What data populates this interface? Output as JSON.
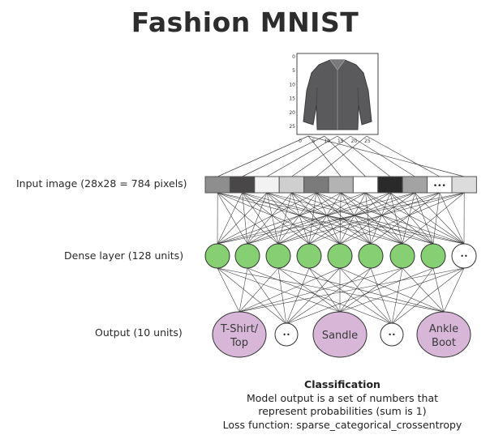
{
  "title": "Fashion MNIST",
  "image_axes": {
    "y_ticks": [
      "0",
      "5",
      "10",
      "15",
      "20",
      "25"
    ],
    "x_ticks": [
      "0",
      "5",
      "10",
      "15",
      "20",
      "25"
    ]
  },
  "rows": {
    "input_label": "Input image (28x28 = 784 pixels)",
    "dense_label": "Dense layer (128 units)",
    "output_label": "Output (10 units)"
  },
  "input_cells": {
    "colors": [
      "#8e8e8e",
      "#4a4749",
      "#f2f2f2",
      "#cfcfcf",
      "#7b7b7b",
      "#b3b3b3",
      "#ffffff",
      "#2a2a2a",
      "#a3a3a3",
      "#ffffff",
      "#dcdcdc"
    ],
    "ellipsis": "•••"
  },
  "dense": {
    "node_color": "#86cf73",
    "ellipsis": "••"
  },
  "outputs": [
    {
      "label_line1": "T-Shirt/",
      "label_line2": "Top"
    },
    {
      "label_line1": "Sandle",
      "label_line2": ""
    },
    {
      "label_line1": "Ankle",
      "label_line2": "Boot"
    }
  ],
  "output_ellipsis": "••",
  "output_color": "#d7b6d8",
  "caption": {
    "heading": "Classification",
    "line1": "Model output is a set of numbers that",
    "line2": "represent probabilities (sum is 1)",
    "line3": "Loss function: sparse_categorical_crossentropy"
  }
}
